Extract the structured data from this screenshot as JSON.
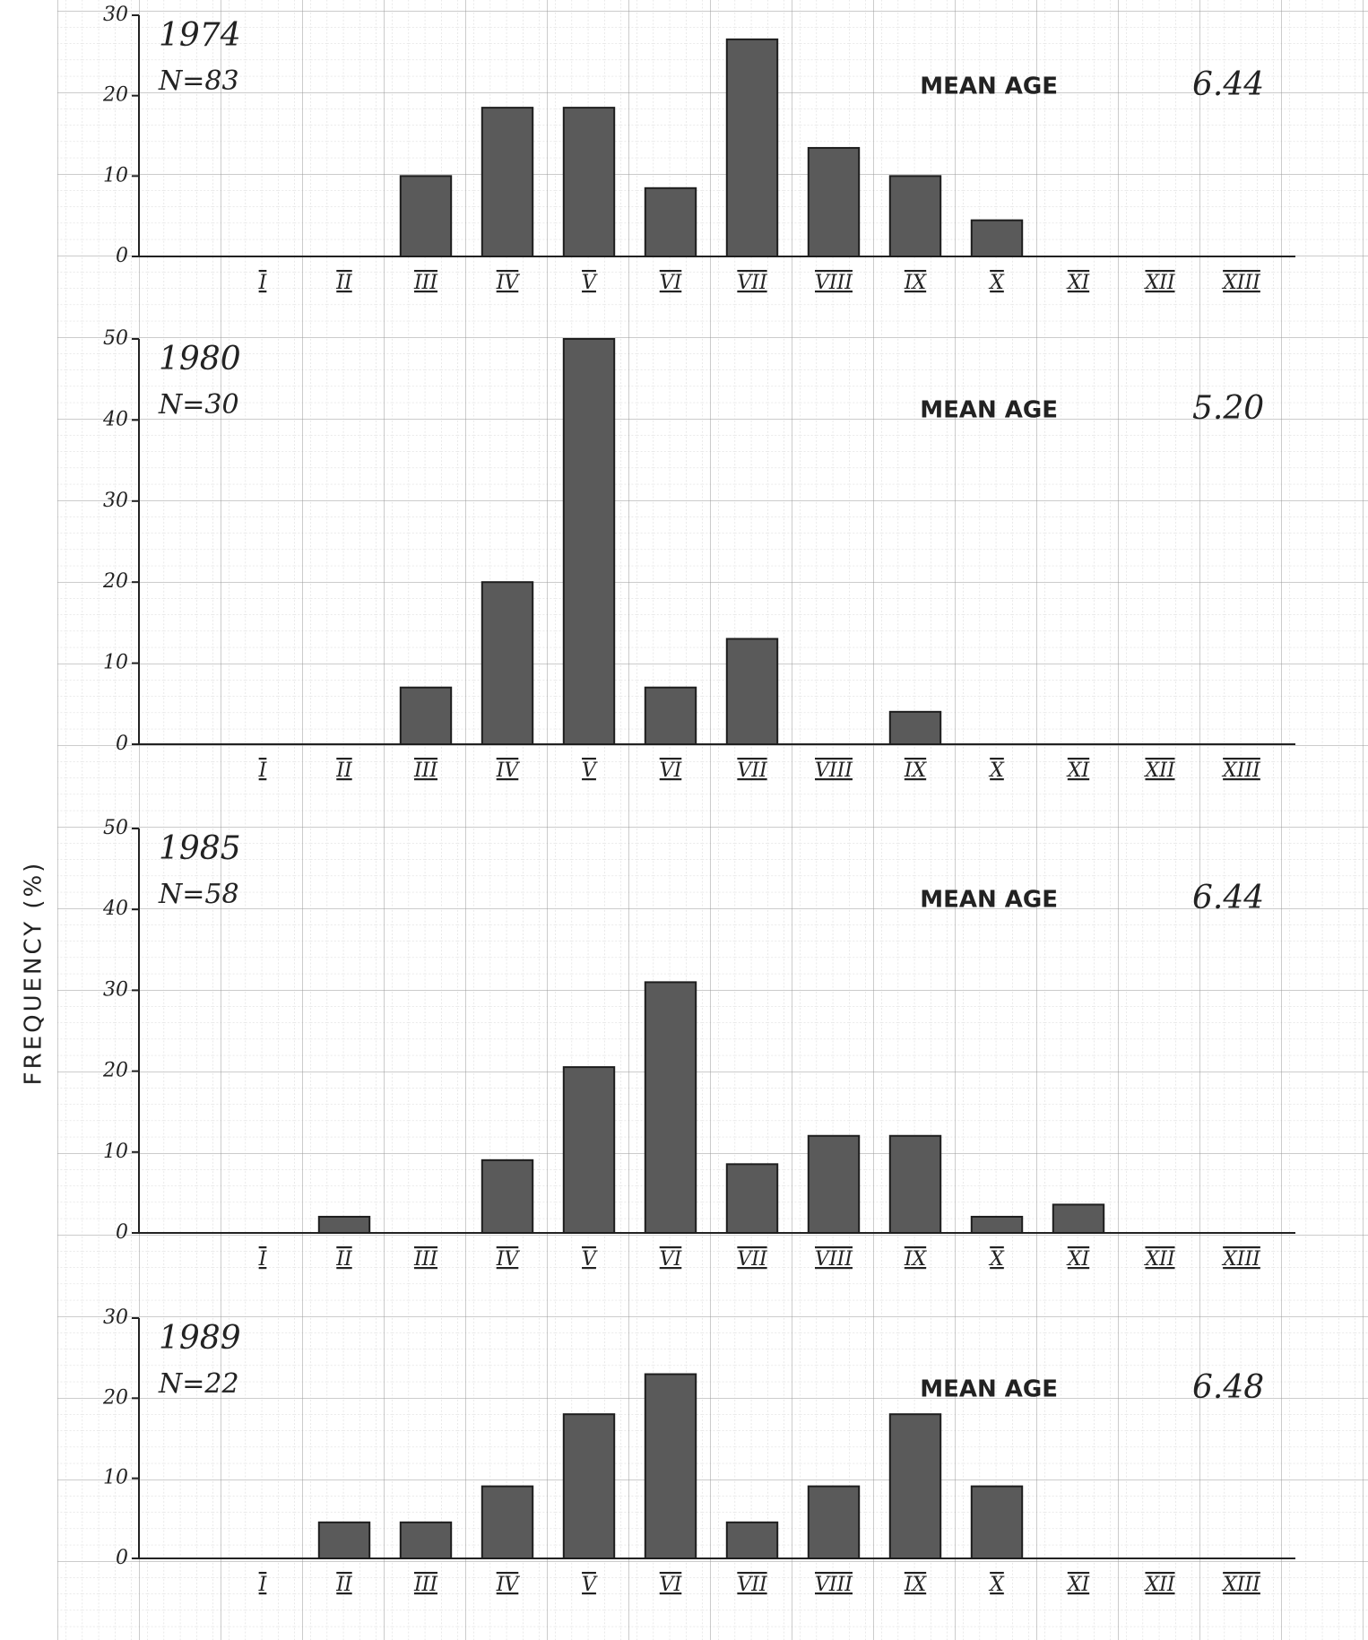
{
  "y_label": "FREQUENCY (%)",
  "chart_data": [
    {
      "type": "bar",
      "title": "1974",
      "subtitle": "N=83",
      "annotation_label": "MEAN AGE",
      "annotation_value": "6.44",
      "categories": [
        "I",
        "II",
        "III",
        "IV",
        "V",
        "VI",
        "VII",
        "VIII",
        "IX",
        "X",
        "XI",
        "XII",
        "XIII"
      ],
      "values": [
        null,
        null,
        10,
        18.5,
        18.5,
        8.5,
        27,
        13.5,
        10,
        4.5,
        null,
        null,
        null
      ],
      "color": "#5a5a5a",
      "ylim": [
        0,
        30
      ],
      "yticks": [
        0,
        10,
        20,
        30
      ]
    },
    {
      "type": "bar",
      "title": "1980",
      "subtitle": "N=30",
      "annotation_label": "MEAN AGE",
      "annotation_value": "5.20",
      "categories": [
        "I",
        "II",
        "III",
        "IV",
        "V",
        "VI",
        "VII",
        "VIII",
        "IX",
        "X",
        "XI",
        "XII",
        "XIII"
      ],
      "values": [
        null,
        null,
        7,
        20,
        50,
        7,
        13,
        null,
        4,
        null,
        null,
        null,
        null
      ],
      "color": "#5a5a5a",
      "ylim": [
        0,
        50
      ],
      "yticks": [
        0,
        10,
        20,
        30,
        40,
        50
      ]
    },
    {
      "type": "bar",
      "title": "1985",
      "subtitle": "N=58",
      "annotation_label": "MEAN AGE",
      "annotation_value": "6.44",
      "categories": [
        "I",
        "II",
        "III",
        "IV",
        "V",
        "VI",
        "VII",
        "VIII",
        "IX",
        "X",
        "XI",
        "XII",
        "XIII"
      ],
      "values": [
        null,
        2,
        null,
        9,
        20.5,
        31,
        8.5,
        12,
        12,
        2,
        3.5,
        null,
        null
      ],
      "color": "#5a5a5a",
      "ylim": [
        0,
        50
      ],
      "yticks": [
        0,
        10,
        20,
        30,
        40,
        50
      ]
    },
    {
      "type": "bar",
      "title": "1989",
      "subtitle": "N=22",
      "annotation_label": "MEAN AGE",
      "annotation_value": "6.48",
      "categories": [
        "I",
        "II",
        "III",
        "IV",
        "V",
        "VI",
        "VII",
        "VIII",
        "IX",
        "X",
        "XI",
        "XII",
        "XIII"
      ],
      "values": [
        null,
        4.5,
        4.5,
        9,
        18,
        23,
        4.5,
        9,
        18,
        9,
        null,
        null,
        null
      ],
      "color": "#5a5a5a",
      "ylim": [
        0,
        30
      ],
      "yticks": [
        0,
        10,
        20,
        30
      ]
    }
  ]
}
